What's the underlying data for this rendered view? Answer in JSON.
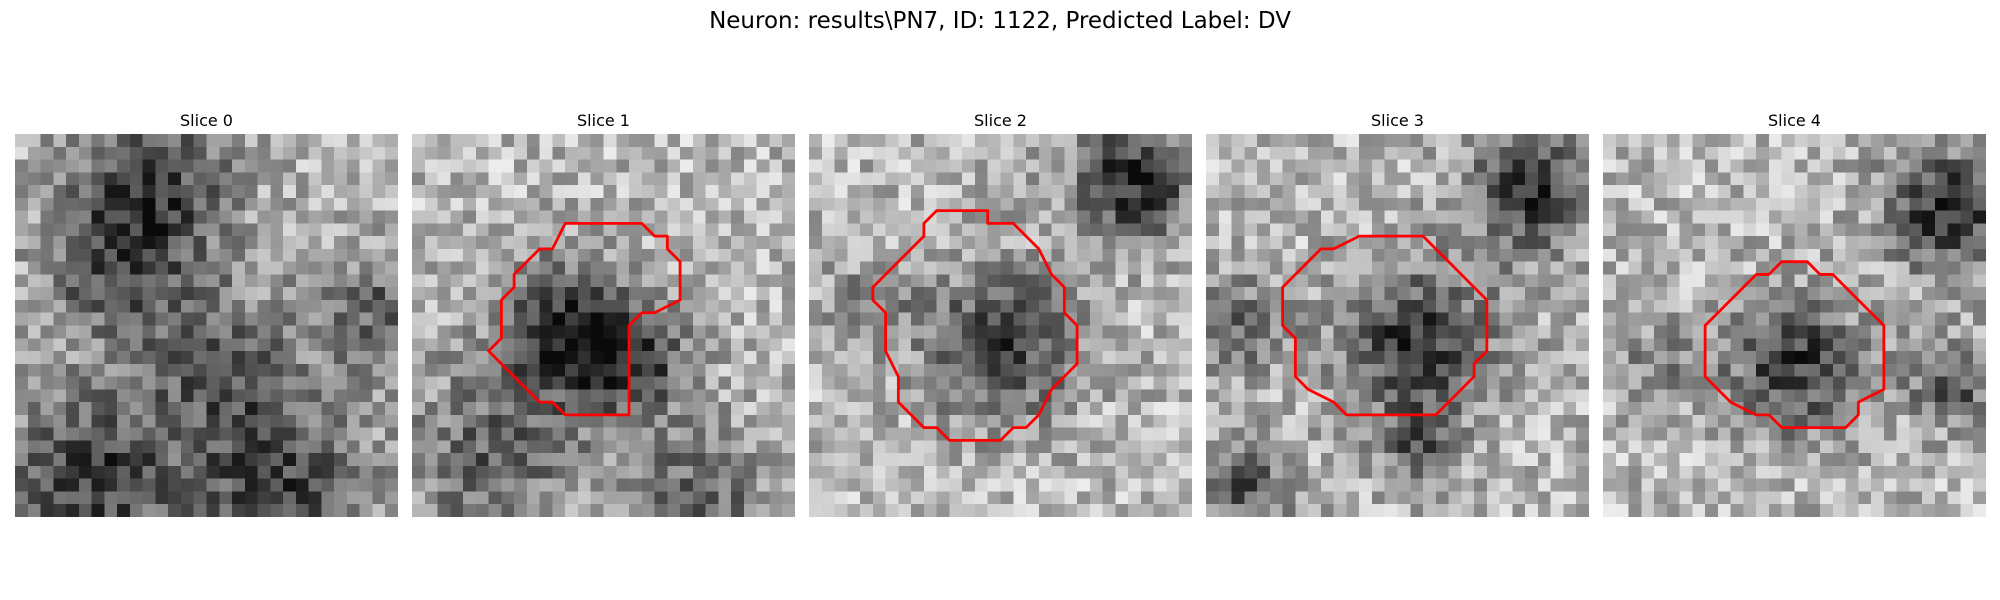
{
  "figure": {
    "title": "Neuron: results\\PN7, ID: 1122, Predicted Label: DV",
    "contour_color": "#ff0000"
  },
  "panels": [
    {
      "title": "Slice 0",
      "has_contour": false,
      "seed": 11,
      "dark_regions": [
        [
          0.35,
          0.15,
          0.28,
          0.9
        ],
        [
          0.25,
          0.38,
          0.22,
          0.6
        ],
        [
          0.55,
          0.6,
          0.25,
          0.6
        ],
        [
          0.2,
          0.9,
          0.3,
          0.9
        ],
        [
          0.7,
          0.92,
          0.3,
          0.8
        ],
        [
          0.95,
          0.45,
          0.2,
          0.6
        ]
      ]
    },
    {
      "title": "Slice 1",
      "has_contour": true,
      "seed": 23,
      "dark_regions": [
        [
          0.42,
          0.52,
          0.24,
          0.95
        ],
        [
          0.58,
          0.6,
          0.18,
          0.7
        ],
        [
          0.2,
          0.85,
          0.3,
          0.6
        ],
        [
          0.75,
          0.95,
          0.25,
          0.6
        ]
      ]
    },
    {
      "title": "Slice 2",
      "has_contour": true,
      "seed": 37,
      "dark_regions": [
        [
          0.5,
          0.55,
          0.24,
          0.9
        ],
        [
          0.85,
          0.12,
          0.2,
          1.0
        ],
        [
          0.15,
          0.45,
          0.15,
          0.4
        ]
      ]
    },
    {
      "title": "Slice 3",
      "has_contour": true,
      "seed": 51,
      "dark_regions": [
        [
          0.55,
          0.55,
          0.25,
          0.95
        ],
        [
          0.85,
          0.15,
          0.2,
          1.0
        ],
        [
          0.1,
          0.5,
          0.15,
          0.6
        ],
        [
          0.1,
          0.92,
          0.15,
          0.8
        ],
        [
          0.55,
          0.82,
          0.12,
          0.6
        ]
      ]
    },
    {
      "title": "Slice 4",
      "has_contour": true,
      "seed": 67,
      "dark_regions": [
        [
          0.5,
          0.6,
          0.22,
          0.9
        ],
        [
          0.9,
          0.2,
          0.2,
          1.0
        ],
        [
          0.92,
          0.65,
          0.15,
          0.7
        ],
        [
          0.15,
          0.6,
          0.15,
          0.35
        ]
      ]
    }
  ]
}
